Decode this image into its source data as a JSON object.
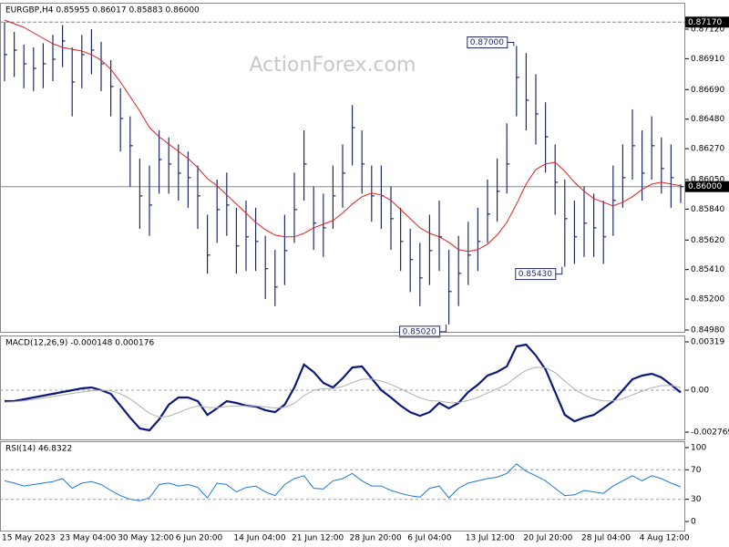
{
  "chart_data": [
    {
      "type": "hlc",
      "title": "EURGBP,H4  0.85955 0.86017 0.85883 0.86000",
      "watermark": "ActionForex.com",
      "color": "#1f2a6b",
      "categories": [
        "15 May 2023",
        null,
        null,
        null,
        null,
        null,
        "23 May 04:00",
        null,
        null,
        null,
        null,
        null,
        "30 May 12:00",
        null,
        null,
        null,
        null,
        null,
        "6 Jun 20:00",
        null,
        null,
        null,
        null,
        null,
        "14 Jun 04:00",
        null,
        null,
        null,
        null,
        null,
        "21 Jun 12:00",
        null,
        null,
        null,
        null,
        null,
        "28 Jun 20:00",
        null,
        null,
        null,
        null,
        null,
        "6 Jul 04:00",
        null,
        null,
        null,
        null,
        null,
        "13 Jul 12:00",
        null,
        null,
        null,
        null,
        null,
        "20 Jul 20:00",
        null,
        null,
        null,
        null,
        null,
        "28 Jul 04:00",
        null,
        null,
        null,
        null,
        null,
        "4 Aug 12:00",
        null,
        null,
        null,
        null
      ],
      "high": [
        0.8717,
        0.871,
        0.8701,
        0.8699,
        0.8702,
        0.8708,
        0.8715,
        0.8699,
        0.8708,
        0.8712,
        0.8703,
        0.869,
        0.867,
        0.865,
        0.862,
        0.8615,
        0.864,
        0.8635,
        0.863,
        0.8625,
        0.8615,
        0.858,
        0.8605,
        0.861,
        0.8585,
        0.859,
        0.8585,
        0.8565,
        0.8555,
        0.858,
        0.861,
        0.864,
        0.86,
        0.8595,
        0.8615,
        0.863,
        0.8658,
        0.864,
        0.8615,
        0.8615,
        0.86,
        0.8585,
        0.857,
        0.856,
        0.858,
        0.859,
        0.8555,
        0.8565,
        0.8575,
        0.8585,
        0.8605,
        0.862,
        0.8645,
        0.87,
        0.8695,
        0.868,
        0.866,
        0.863,
        0.8605,
        0.859,
        0.86,
        0.8595,
        0.859,
        0.8615,
        0.863,
        0.8655,
        0.864,
        0.865,
        0.8635,
        0.863,
        0.86017
      ],
      "low": [
        0.8675,
        0.8678,
        0.867,
        0.8668,
        0.867,
        0.8675,
        0.8685,
        0.865,
        0.867,
        0.868,
        0.8668,
        0.865,
        0.8625,
        0.86,
        0.857,
        0.8565,
        0.8595,
        0.8595,
        0.859,
        0.8585,
        0.857,
        0.8538,
        0.856,
        0.8565,
        0.8538,
        0.854,
        0.854,
        0.852,
        0.8515,
        0.853,
        0.856,
        0.859,
        0.8555,
        0.855,
        0.857,
        0.8585,
        0.8615,
        0.8595,
        0.8575,
        0.857,
        0.8555,
        0.854,
        0.8525,
        0.8515,
        0.853,
        0.854,
        0.8502,
        0.8515,
        0.853,
        0.854,
        0.856,
        0.8575,
        0.8595,
        0.865,
        0.864,
        0.863,
        0.861,
        0.858,
        0.8543,
        0.8545,
        0.855,
        0.855,
        0.8545,
        0.8565,
        0.8585,
        0.8605,
        0.859,
        0.8605,
        0.8595,
        0.8585,
        0.85883
      ],
      "close": [
        0.86939,
        0.86971,
        0.86874,
        0.86841,
        0.86874,
        0.86906,
        0.87036,
        0.86744,
        0.86939,
        0.86971,
        0.86874,
        0.86712,
        0.86485,
        0.86291,
        0.85934,
        0.85869,
        0.86193,
        0.86161,
        0.86096,
        0.86064,
        0.85934,
        0.85513,
        0.85837,
        0.85869,
        0.85578,
        0.85643,
        0.8561,
        0.85416,
        0.85286,
        0.85545,
        0.85837,
        0.86161,
        0.8574,
        0.85707,
        0.85934,
        0.86096,
        0.8642,
        0.86161,
        0.85934,
        0.85934,
        0.85772,
        0.8561,
        0.85481,
        0.85351,
        0.85545,
        0.85643,
        0.85254,
        0.85383,
        0.85513,
        0.8561,
        0.85805,
        0.85967,
        0.86161,
        0.86777,
        0.86615,
        0.86517,
        0.86355,
        0.86031,
        0.85772,
        0.85643,
        0.8574,
        0.85707,
        0.85643,
        0.85902,
        0.86064,
        0.86291,
        0.86096,
        0.86291,
        0.86129,
        0.86064,
        0.86
      ],
      "ma_color": "#e02020",
      "ma_values": [
        0.87185,
        0.87159,
        0.87133,
        0.87094,
        0.87055,
        0.87016,
        0.8699,
        0.86977,
        0.86964,
        0.86939,
        0.869,
        0.86835,
        0.86744,
        0.8664,
        0.86537,
        0.8642,
        0.86355,
        0.86303,
        0.86251,
        0.862,
        0.86135,
        0.86057,
        0.86005,
        0.85941,
        0.85876,
        0.85811,
        0.85746,
        0.85694,
        0.85656,
        0.85643,
        0.85643,
        0.85668,
        0.85707,
        0.85733,
        0.85759,
        0.85811,
        0.85876,
        0.85928,
        0.85954,
        0.85941,
        0.85902,
        0.85837,
        0.85772,
        0.85707,
        0.85668,
        0.85643,
        0.85604,
        0.85552,
        0.85539,
        0.85552,
        0.85591,
        0.85656,
        0.85746,
        0.85876,
        0.86018,
        0.86122,
        0.86161,
        0.86174,
        0.86109,
        0.86031,
        0.85967,
        0.85915,
        0.85889,
        0.85863,
        0.85889,
        0.85928,
        0.8598,
        0.86018,
        0.86031,
        0.86018,
        0.86005
      ],
      "ylim": [
        0.84967,
        0.87308
      ],
      "yticks": [
        {
          "value": 0.8498,
          "label": "0.84980"
        },
        {
          "value": 0.852,
          "label": "0.85200"
        },
        {
          "value": 0.8541,
          "label": "0.85410"
        },
        {
          "value": 0.8562,
          "label": "0.85620"
        },
        {
          "value": 0.8584,
          "label": "0.85840"
        },
        {
          "value": 0.8605,
          "label": "0.86050"
        },
        {
          "value": 0.8627,
          "label": "0.86270"
        },
        {
          "value": 0.8648,
          "label": "0.86480"
        },
        {
          "value": 0.8669,
          "label": "0.86690"
        },
        {
          "value": 0.8691,
          "label": "0.86910"
        },
        {
          "value": 0.8712,
          "label": "0.87120"
        }
      ],
      "hlines": [
        {
          "value": 0.8717,
          "label": "0.87170",
          "dashed": true
        },
        {
          "value": 0.86,
          "label": "0.86000",
          "dashed": false
        }
      ],
      "annotations": [
        {
          "value": 0.87,
          "label": "0.87000",
          "side": "high"
        },
        {
          "value": 0.8543,
          "label": "0.85430",
          "side": "low"
        },
        {
          "value": 0.8502,
          "label": "0.85020",
          "side": "low"
        }
      ]
    },
    {
      "type": "line",
      "title": "MACD(12,26,9) -0.000148 0.000176",
      "series": [
        {
          "color": "#0b1a7a",
          "values": [
            -0.00072,
            -0.00072,
            -0.0006,
            -0.00048,
            -0.00036,
            -0.00024,
            -0.00012,
            0,
            0.00012,
            0.00018,
            0,
            -0.00024,
            -0.00102,
            -0.00181,
            -0.00253,
            -0.00265,
            -0.00193,
            -0.00096,
            -0.00048,
            -0.00048,
            -0.00072,
            -0.00163,
            -0.0012,
            -0.00072,
            -0.00084,
            -0.00102,
            -0.00108,
            -0.00132,
            -0.00145,
            -0.00096,
            0.00018,
            0.00169,
            0.0012,
            0.00048,
            0.00018,
            0.00078,
            0.0015,
            0.00157,
            0.00078,
            0,
            -0.00048,
            -0.00102,
            -0.00145,
            -0.00169,
            -0.00145,
            -0.00084,
            -0.0012,
            -0.00084,
            -0.00012,
            0.00036,
            0.00096,
            0.0012,
            0.00157,
            0.00289,
            0.00301,
            0.00229,
            0.00138,
            -0.00012,
            -0.00163,
            -0.00205,
            -0.00181,
            -0.00163,
            -0.0012,
            -0.00072,
            0,
            0.00072,
            0.00096,
            0.00108,
            0.00084,
            0.00036,
            -0.000148
          ]
        },
        {
          "color": "#b0b0b0",
          "values": [
            -0.0008,
            -0.00076,
            -0.0007,
            -0.00062,
            -0.00052,
            -0.00042,
            -0.00032,
            -0.00022,
            -0.00012,
            -4e-05,
            0,
            -4e-05,
            -0.00024,
            -0.00058,
            -0.00104,
            -0.00152,
            -0.00178,
            -0.00172,
            -0.00148,
            -0.00122,
            -0.00104,
            -0.00114,
            -0.00116,
            -0.00108,
            -0.00104,
            -0.00104,
            -0.00104,
            -0.0011,
            -0.00118,
            -0.00114,
            -0.00088,
            -0.00036,
            0,
            0.0001,
            0.0001,
            0.00024,
            0.0005,
            0.00072,
            0.00074,
            0.0006,
            0.00038,
            0.0001,
            -0.00021,
            -0.0005,
            -0.00069,
            -0.00072,
            -0.00082,
            -0.00082,
            -0.00068,
            -0.00047,
            -0.00019,
            9e-05,
            0.00039,
            0.00089,
            0.00131,
            0.00151,
            0.00148,
            0.00116,
            0.0006,
            7e-05,
            -0.00031,
            -0.00058,
            -0.00071,
            -0.00071,
            -0.00057,
            -0.00031,
            -6e-05,
            0.00017,
            0.0003,
            0.00031,
            0.000176
          ]
        }
      ],
      "ylim": [
        -0.00325,
        0.00361
      ],
      "yticks": [
        0.00319,
        {
          "value": 0,
          "label": "0.00"
        },
        -0.002769
      ],
      "levels": [
        0
      ]
    },
    {
      "type": "line",
      "title": "RSI(14) 46.8322",
      "series": [
        {
          "color": "#1e78d6",
          "values": [
            55,
            52,
            48,
            50,
            52,
            54,
            58,
            45,
            52,
            54,
            50,
            42,
            35,
            30,
            28,
            32,
            50,
            52,
            48,
            50,
            46,
            32,
            52,
            50,
            40,
            46,
            48,
            40,
            35,
            50,
            58,
            62,
            45,
            44,
            55,
            58,
            65,
            55,
            48,
            48,
            42,
            38,
            35,
            33,
            45,
            48,
            32,
            45,
            52,
            55,
            58,
            60,
            65,
            78,
            68,
            62,
            55,
            45,
            35,
            36,
            42,
            40,
            38,
            48,
            55,
            62,
            55,
            62,
            58,
            52,
            46.8322
          ]
        }
      ],
      "ylim": [
        -12.3,
        108.6
      ],
      "yticks": [
        100,
        70,
        30,
        0
      ],
      "levels": [
        70,
        30
      ]
    }
  ]
}
